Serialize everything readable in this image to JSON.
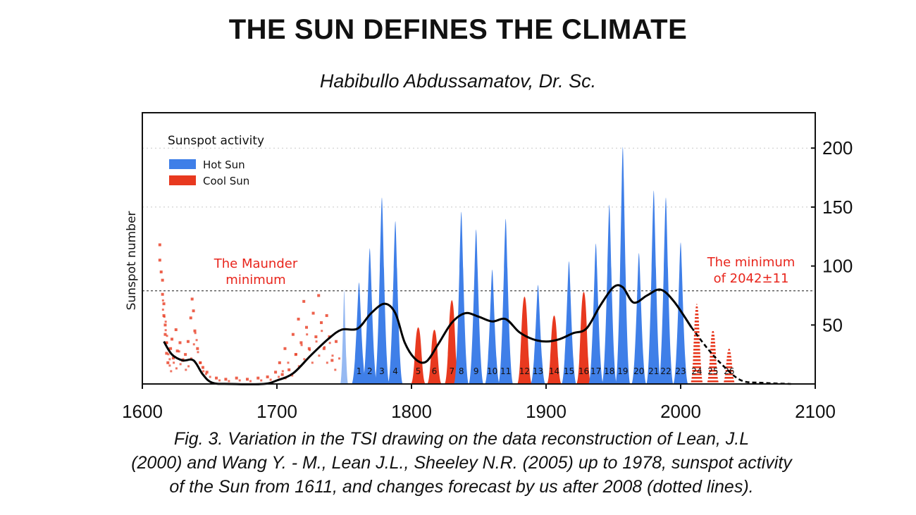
{
  "header": {
    "title": "THE SUN DEFINES THE CLIMATE",
    "author": "Habibullo Abdussamatov, Dr. Sc."
  },
  "caption": {
    "line1": "Fig. 3. Variation in the TSI drawing on the data reconstruction of Lean, J.L",
    "line2": "(2000) and Wang Y. - M., Lean J.L., Sheeley N.R. (2005) up to 1978, sunspot activity",
    "line3": "of the Sun from 1611, and changes forecast by us after 2008 (dotted lines)."
  },
  "chart_data": {
    "type": "area",
    "ylabel": "Sunspot number",
    "xlim": [
      1600,
      2100
    ],
    "ylim": [
      0,
      230
    ],
    "x_ticks": [
      1600,
      1700,
      1800,
      1900,
      2000,
      2100
    ],
    "y_ticks": [
      50,
      100,
      150,
      200
    ],
    "y_axis_side": "right",
    "gridlines_y": [
      150,
      200
    ],
    "reference_line_y": 79,
    "legend": {
      "title": "Sunspot activity",
      "placement": "top-left",
      "items": [
        {
          "label": "Hot Sun",
          "color": "#3f7fe8"
        },
        {
          "label": "Cool Sun",
          "color": "#e8391f"
        }
      ]
    },
    "annotations": [
      {
        "lines": [
          "The Maunder",
          "minimum"
        ],
        "color": "#e8251c"
      },
      {
        "lines": [
          "The minimum",
          "of 2042±11"
        ],
        "color": "#e8251c"
      }
    ],
    "colors": {
      "hot": "#3f7fe8",
      "cool": "#e8391f",
      "trend": "#000000"
    },
    "cycles": [
      {
        "label": "1",
        "year": 1761,
        "peak": 86,
        "kind": "hot"
      },
      {
        "label": "2",
        "year": 1769,
        "peak": 115,
        "kind": "hot"
      },
      {
        "label": "3",
        "year": 1778,
        "peak": 158,
        "kind": "hot"
      },
      {
        "label": "4",
        "year": 1788,
        "peak": 138,
        "kind": "hot"
      },
      {
        "label": "5",
        "year": 1805,
        "peak": 48,
        "kind": "cool"
      },
      {
        "label": "6",
        "year": 1817,
        "peak": 46,
        "kind": "cool"
      },
      {
        "label": "7",
        "year": 1830,
        "peak": 71,
        "kind": "cool"
      },
      {
        "label": "8",
        "year": 1837,
        "peak": 146,
        "kind": "hot"
      },
      {
        "label": "9",
        "year": 1848,
        "peak": 131,
        "kind": "hot"
      },
      {
        "label": "10",
        "year": 1860,
        "peak": 97,
        "kind": "hot"
      },
      {
        "label": "11",
        "year": 1870,
        "peak": 140,
        "kind": "hot"
      },
      {
        "label": "12",
        "year": 1884,
        "peak": 74,
        "kind": "cool"
      },
      {
        "label": "13",
        "year": 1894,
        "peak": 84,
        "kind": "hot"
      },
      {
        "label": "14",
        "year": 1906,
        "peak": 58,
        "kind": "cool"
      },
      {
        "label": "15",
        "year": 1917,
        "peak": 104,
        "kind": "hot"
      },
      {
        "label": "16",
        "year": 1928,
        "peak": 78,
        "kind": "cool"
      },
      {
        "label": "17",
        "year": 1937,
        "peak": 119,
        "kind": "hot"
      },
      {
        "label": "18",
        "year": 1947,
        "peak": 152,
        "kind": "hot"
      },
      {
        "label": "19",
        "year": 1957,
        "peak": 201,
        "kind": "hot"
      },
      {
        "label": "20",
        "year": 1969,
        "peak": 111,
        "kind": "hot"
      },
      {
        "label": "21",
        "year": 1980,
        "peak": 164,
        "kind": "hot"
      },
      {
        "label": "22",
        "year": 1989,
        "peak": 158,
        "kind": "hot"
      },
      {
        "label": "23",
        "year": 2000,
        "peak": 120,
        "kind": "hot"
      },
      {
        "label": "24",
        "year": 2012,
        "peak": 68,
        "kind": "forecast"
      },
      {
        "label": "25",
        "year": 2024,
        "peak": 46,
        "kind": "forecast"
      },
      {
        "label": "26",
        "year": 2036,
        "peak": 30,
        "kind": "forecast"
      }
    ],
    "early_hot_pulse": {
      "year": 1750,
      "peak": 80
    },
    "maunder_scatter": [
      {
        "x": 1613,
        "y": 118
      },
      {
        "x": 1613,
        "y": 105
      },
      {
        "x": 1614,
        "y": 95
      },
      {
        "x": 1615,
        "y": 88
      },
      {
        "x": 1615,
        "y": 76
      },
      {
        "x": 1616,
        "y": 68
      },
      {
        "x": 1616,
        "y": 58
      },
      {
        "x": 1617,
        "y": 50
      },
      {
        "x": 1617,
        "y": 42
      },
      {
        "x": 1618,
        "y": 35
      },
      {
        "x": 1618,
        "y": 26
      },
      {
        "x": 1619,
        "y": 18
      },
      {
        "x": 1621,
        "y": 30
      },
      {
        "x": 1622,
        "y": 38
      },
      {
        "x": 1623,
        "y": 22
      },
      {
        "x": 1625,
        "y": 46
      },
      {
        "x": 1626,
        "y": 28
      },
      {
        "x": 1628,
        "y": 35
      },
      {
        "x": 1630,
        "y": 20
      },
      {
        "x": 1632,
        "y": 25
      },
      {
        "x": 1634,
        "y": 36
      },
      {
        "x": 1636,
        "y": 56
      },
      {
        "x": 1637,
        "y": 72
      },
      {
        "x": 1638,
        "y": 62
      },
      {
        "x": 1639,
        "y": 45
      },
      {
        "x": 1641,
        "y": 30
      },
      {
        "x": 1643,
        "y": 18
      },
      {
        "x": 1645,
        "y": 14
      },
      {
        "x": 1648,
        "y": 10
      },
      {
        "x": 1655,
        "y": 5
      },
      {
        "x": 1662,
        "y": 4
      },
      {
        "x": 1670,
        "y": 5
      },
      {
        "x": 1678,
        "y": 4
      },
      {
        "x": 1686,
        "y": 5
      },
      {
        "x": 1693,
        "y": 6
      },
      {
        "x": 1699,
        "y": 10
      },
      {
        "x": 1702,
        "y": 18
      },
      {
        "x": 1704,
        "y": 8
      },
      {
        "x": 1706,
        "y": 30
      },
      {
        "x": 1709,
        "y": 12
      },
      {
        "x": 1712,
        "y": 42
      },
      {
        "x": 1714,
        "y": 25
      },
      {
        "x": 1716,
        "y": 55
      },
      {
        "x": 1718,
        "y": 35
      },
      {
        "x": 1720,
        "y": 70
      },
      {
        "x": 1722,
        "y": 48
      },
      {
        "x": 1724,
        "y": 30
      },
      {
        "x": 1727,
        "y": 60
      },
      {
        "x": 1729,
        "y": 40
      },
      {
        "x": 1731,
        "y": 75
      },
      {
        "x": 1733,
        "y": 52
      },
      {
        "x": 1735,
        "y": 30
      },
      {
        "x": 1737,
        "y": 58
      },
      {
        "x": 1739,
        "y": 40
      },
      {
        "x": 1741,
        "y": 20
      },
      {
        "x": 1744,
        "y": 36
      }
    ],
    "trend": [
      {
        "x": 1616,
        "y": 36
      },
      {
        "x": 1622,
        "y": 25
      },
      {
        "x": 1630,
        "y": 20
      },
      {
        "x": 1638,
        "y": 20
      },
      {
        "x": 1645,
        "y": 8
      },
      {
        "x": 1652,
        "y": 1
      },
      {
        "x": 1665,
        "y": 0
      },
      {
        "x": 1690,
        "y": 0
      },
      {
        "x": 1700,
        "y": 3
      },
      {
        "x": 1712,
        "y": 9
      },
      {
        "x": 1725,
        "y": 24
      },
      {
        "x": 1738,
        "y": 38
      },
      {
        "x": 1748,
        "y": 46
      },
      {
        "x": 1760,
        "y": 47
      },
      {
        "x": 1770,
        "y": 60
      },
      {
        "x": 1780,
        "y": 68
      },
      {
        "x": 1788,
        "y": 60
      },
      {
        "x": 1795,
        "y": 35
      },
      {
        "x": 1803,
        "y": 21
      },
      {
        "x": 1811,
        "y": 19
      },
      {
        "x": 1820,
        "y": 34
      },
      {
        "x": 1830,
        "y": 52
      },
      {
        "x": 1840,
        "y": 60
      },
      {
        "x": 1850,
        "y": 57
      },
      {
        "x": 1860,
        "y": 53
      },
      {
        "x": 1870,
        "y": 55
      },
      {
        "x": 1880,
        "y": 44
      },
      {
        "x": 1890,
        "y": 38
      },
      {
        "x": 1900,
        "y": 36
      },
      {
        "x": 1910,
        "y": 38
      },
      {
        "x": 1920,
        "y": 43
      },
      {
        "x": 1930,
        "y": 47
      },
      {
        "x": 1940,
        "y": 66
      },
      {
        "x": 1950,
        "y": 82
      },
      {
        "x": 1957,
        "y": 82
      },
      {
        "x": 1965,
        "y": 69
      },
      {
        "x": 1975,
        "y": 75
      },
      {
        "x": 1985,
        "y": 80
      },
      {
        "x": 1995,
        "y": 70
      },
      {
        "x": 2008,
        "y": 48
      }
    ],
    "trend_forecast": [
      {
        "x": 2008,
        "y": 48
      },
      {
        "x": 2020,
        "y": 30
      },
      {
        "x": 2032,
        "y": 15
      },
      {
        "x": 2045,
        "y": 3
      },
      {
        "x": 2060,
        "y": 1
      },
      {
        "x": 2082,
        "y": 0
      }
    ]
  }
}
